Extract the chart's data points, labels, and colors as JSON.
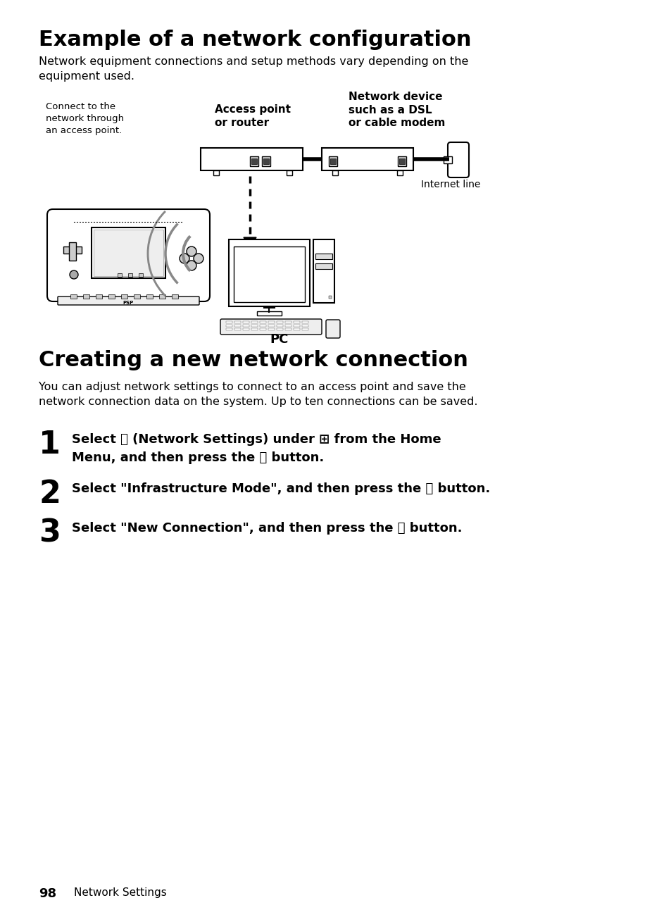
{
  "title": "Example of a network configuration",
  "subtitle": "Network equipment connections and setup methods vary depending on the\nequipment used.",
  "section2_title": "Creating a new network connection",
  "section2_subtitle": "You can adjust network settings to connect to an access point and save the\nnetwork connection data on the system. Up to ten connections can be saved.",
  "label_connect": "Connect to the\nnetwork through\nan access point.",
  "label_access": "Access point\nor router",
  "label_network_device": "Network device\nsuch as a DSL\nor cable modem",
  "label_internet": "Internet line",
  "label_pc": "PC",
  "step1": "Select ⓗ (Network Settings) under ⊞ from the Home\nMenu, and then press the ⓧ button.",
  "step2": "Select \"Infrastructure Mode\", and then press the ⓧ button.",
  "step3": "Select \"New Connection\", and then press the ⓧ button.",
  "footer_number": "98",
  "footer_text": "Network Settings",
  "bg_color": "#ffffff",
  "text_color": "#000000",
  "gray_color": "#888888"
}
